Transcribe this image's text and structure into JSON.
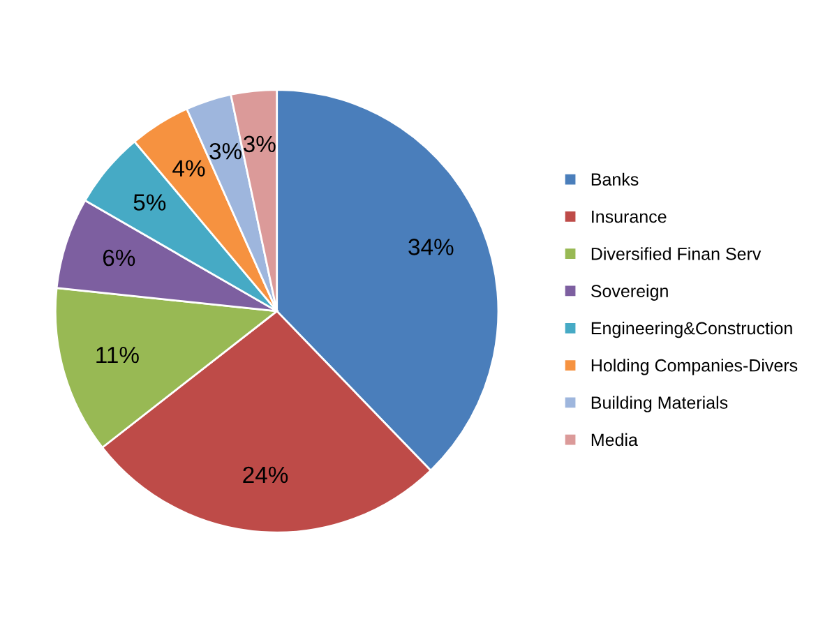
{
  "chart_data": {
    "type": "pie",
    "categories": [
      "Banks",
      "Insurance",
      "Diversified Finan Serv",
      "Sovereign",
      "Engineering&Construction",
      "Holding Companies-Divers",
      "Building Materials",
      "Media"
    ],
    "values": [
      34,
      24,
      11,
      6,
      5,
      4,
      3,
      3
    ],
    "value_labels": [
      "34%",
      "24%",
      "11%",
      "6%",
      "5%",
      "4%",
      "3%",
      "3%"
    ],
    "colors": [
      "#4a7ebb",
      "#be4b48",
      "#98b954",
      "#7d5fa0",
      "#46aac5",
      "#f69240",
      "#9eb6dd",
      "#db9a99"
    ],
    "legend": "right"
  }
}
